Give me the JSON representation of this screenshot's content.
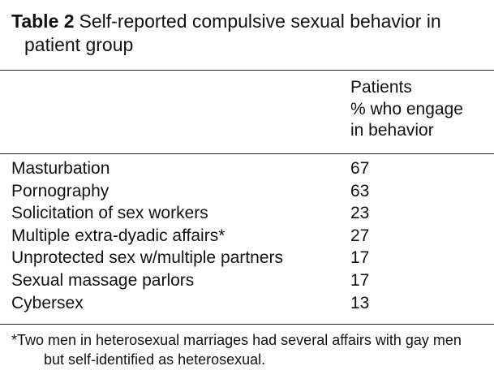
{
  "table": {
    "label": "Table 2",
    "title": "Self-reported compulsive sexual behavior in patient group",
    "header": [
      "Patients",
      "% who engage",
      "in behavior"
    ],
    "rows": [
      [
        "Masturbation",
        67
      ],
      [
        "Pornography",
        63
      ],
      [
        "Solicitation of sex workers",
        23
      ],
      [
        "Multiple extra-dyadic affairs*",
        27
      ],
      [
        "Unprotected sex w/multiple partners",
        17
      ],
      [
        "Sexual massage parlors",
        17
      ],
      [
        "Cybersex",
        13
      ]
    ],
    "footnote": "*Two men in heterosexual marriages had several affairs with gay men but self-identified as heterosexual."
  }
}
